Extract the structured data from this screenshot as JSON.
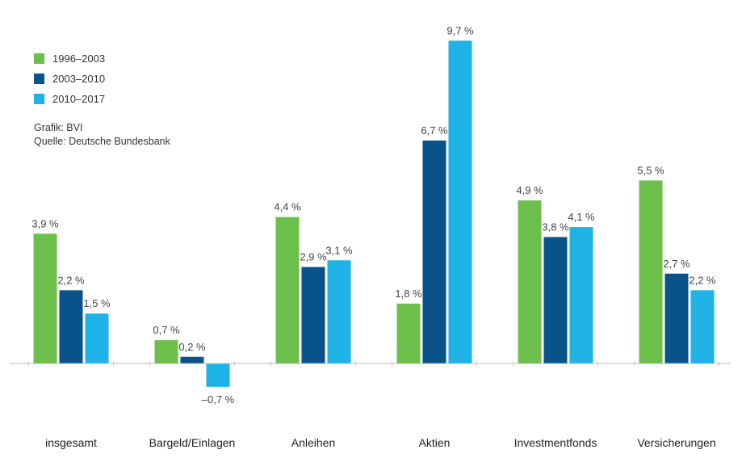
{
  "legend": {
    "items": [
      {
        "label": "1996–2003",
        "color": "#6cbf4b"
      },
      {
        "label": "2003–2010",
        "color": "#08548a"
      },
      {
        "label": "2010–2017",
        "color": "#1eb2e6"
      }
    ]
  },
  "notes": {
    "grafik": "Grafik: BVI",
    "quelle": "Quelle: Deutsche Bundesbank"
  },
  "chart_data": {
    "type": "bar",
    "categories": [
      "insgesamt",
      "Bargeld/Einlagen",
      "Anleihen",
      "Aktien",
      "Investmentfonds",
      "Versicherungen"
    ],
    "series": [
      {
        "name": "1996–2003",
        "color": "#6cbf4b",
        "values": [
          3.9,
          0.7,
          4.4,
          1.8,
          4.9,
          5.5
        ],
        "labels": [
          "3,9 %",
          "0,7 %",
          "4,4 %",
          "1,8 %",
          "4,9 %",
          "5,5 %"
        ]
      },
      {
        "name": "2003–2010",
        "color": "#08548a",
        "values": [
          2.2,
          0.2,
          2.9,
          6.7,
          3.8,
          2.7
        ],
        "labels": [
          "2,2 %",
          "0,2 %",
          "2,9 %",
          "6,7 %",
          "3,8 %",
          "2,7 %"
        ]
      },
      {
        "name": "2010–2017",
        "color": "#1eb2e6",
        "values": [
          1.5,
          -0.7,
          3.1,
          9.7,
          4.1,
          2.2
        ],
        "labels": [
          "1,5 %",
          "–0,7 %",
          "3,1 %",
          "9,7 %",
          "4,1 %",
          "2,2 %"
        ]
      }
    ],
    "ylim": [
      -1,
      10
    ],
    "grid": false,
    "legend_position": "top-left"
  }
}
